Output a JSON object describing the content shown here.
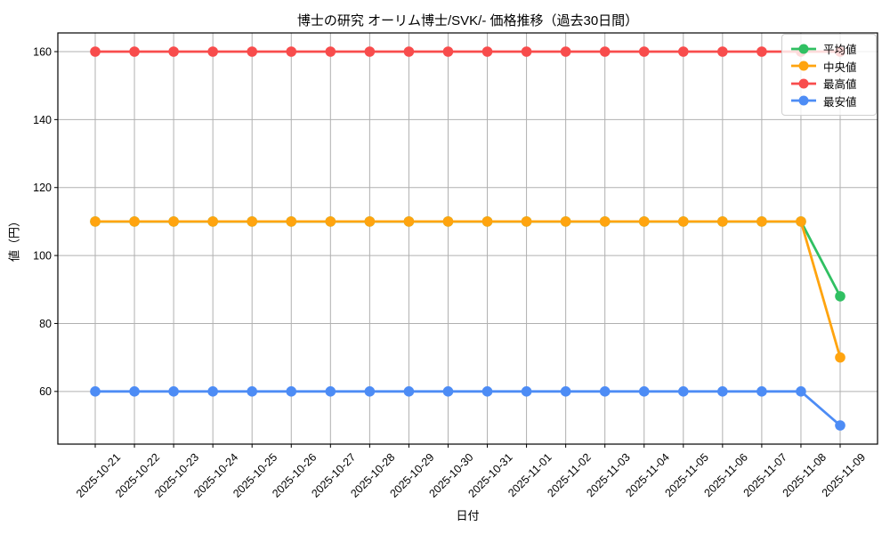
{
  "page": {
    "background": "#ffffff"
  },
  "chart_data": {
    "type": "line",
    "title": "博士の研究 オーリム博士/SVK/- 価格推移（過去30日間）",
    "xlabel": "日付",
    "ylabel": "値（円）",
    "categories": [
      "2025-10-21",
      "2025-10-22",
      "2025-10-23",
      "2025-10-24",
      "2025-10-25",
      "2025-10-26",
      "2025-10-27",
      "2025-10-28",
      "2025-10-29",
      "2025-10-30",
      "2025-10-31",
      "2025-11-01",
      "2025-11-02",
      "2025-11-03",
      "2025-11-04",
      "2025-11-05",
      "2025-11-06",
      "2025-11-07",
      "2025-11-08",
      "2025-11-09"
    ],
    "series": [
      {
        "name": "平均値",
        "color": "#30c062",
        "values": [
          110,
          110,
          110,
          110,
          110,
          110,
          110,
          110,
          110,
          110,
          110,
          110,
          110,
          110,
          110,
          110,
          110,
          110,
          110,
          88
        ]
      },
      {
        "name": "中央値",
        "color": "#ffa40f",
        "values": [
          110,
          110,
          110,
          110,
          110,
          110,
          110,
          110,
          110,
          110,
          110,
          110,
          110,
          110,
          110,
          110,
          110,
          110,
          110,
          70
        ]
      },
      {
        "name": "最高値",
        "color": "#f84c4c",
        "values": [
          160,
          160,
          160,
          160,
          160,
          160,
          160,
          160,
          160,
          160,
          160,
          160,
          160,
          160,
          160,
          160,
          160,
          160,
          160,
          160
        ]
      },
      {
        "name": "最安値",
        "color": "#4d8cf5",
        "values": [
          60,
          60,
          60,
          60,
          60,
          60,
          60,
          60,
          60,
          60,
          60,
          60,
          60,
          60,
          60,
          60,
          60,
          60,
          60,
          50
        ]
      }
    ],
    "yticks": [
      60,
      80,
      100,
      120,
      140,
      160
    ],
    "ylim": [
      44.5,
      165.5
    ],
    "grid": true,
    "grid_color": "#b0b0b0",
    "axis_color": "#000000",
    "legend_position": "upper right"
  }
}
